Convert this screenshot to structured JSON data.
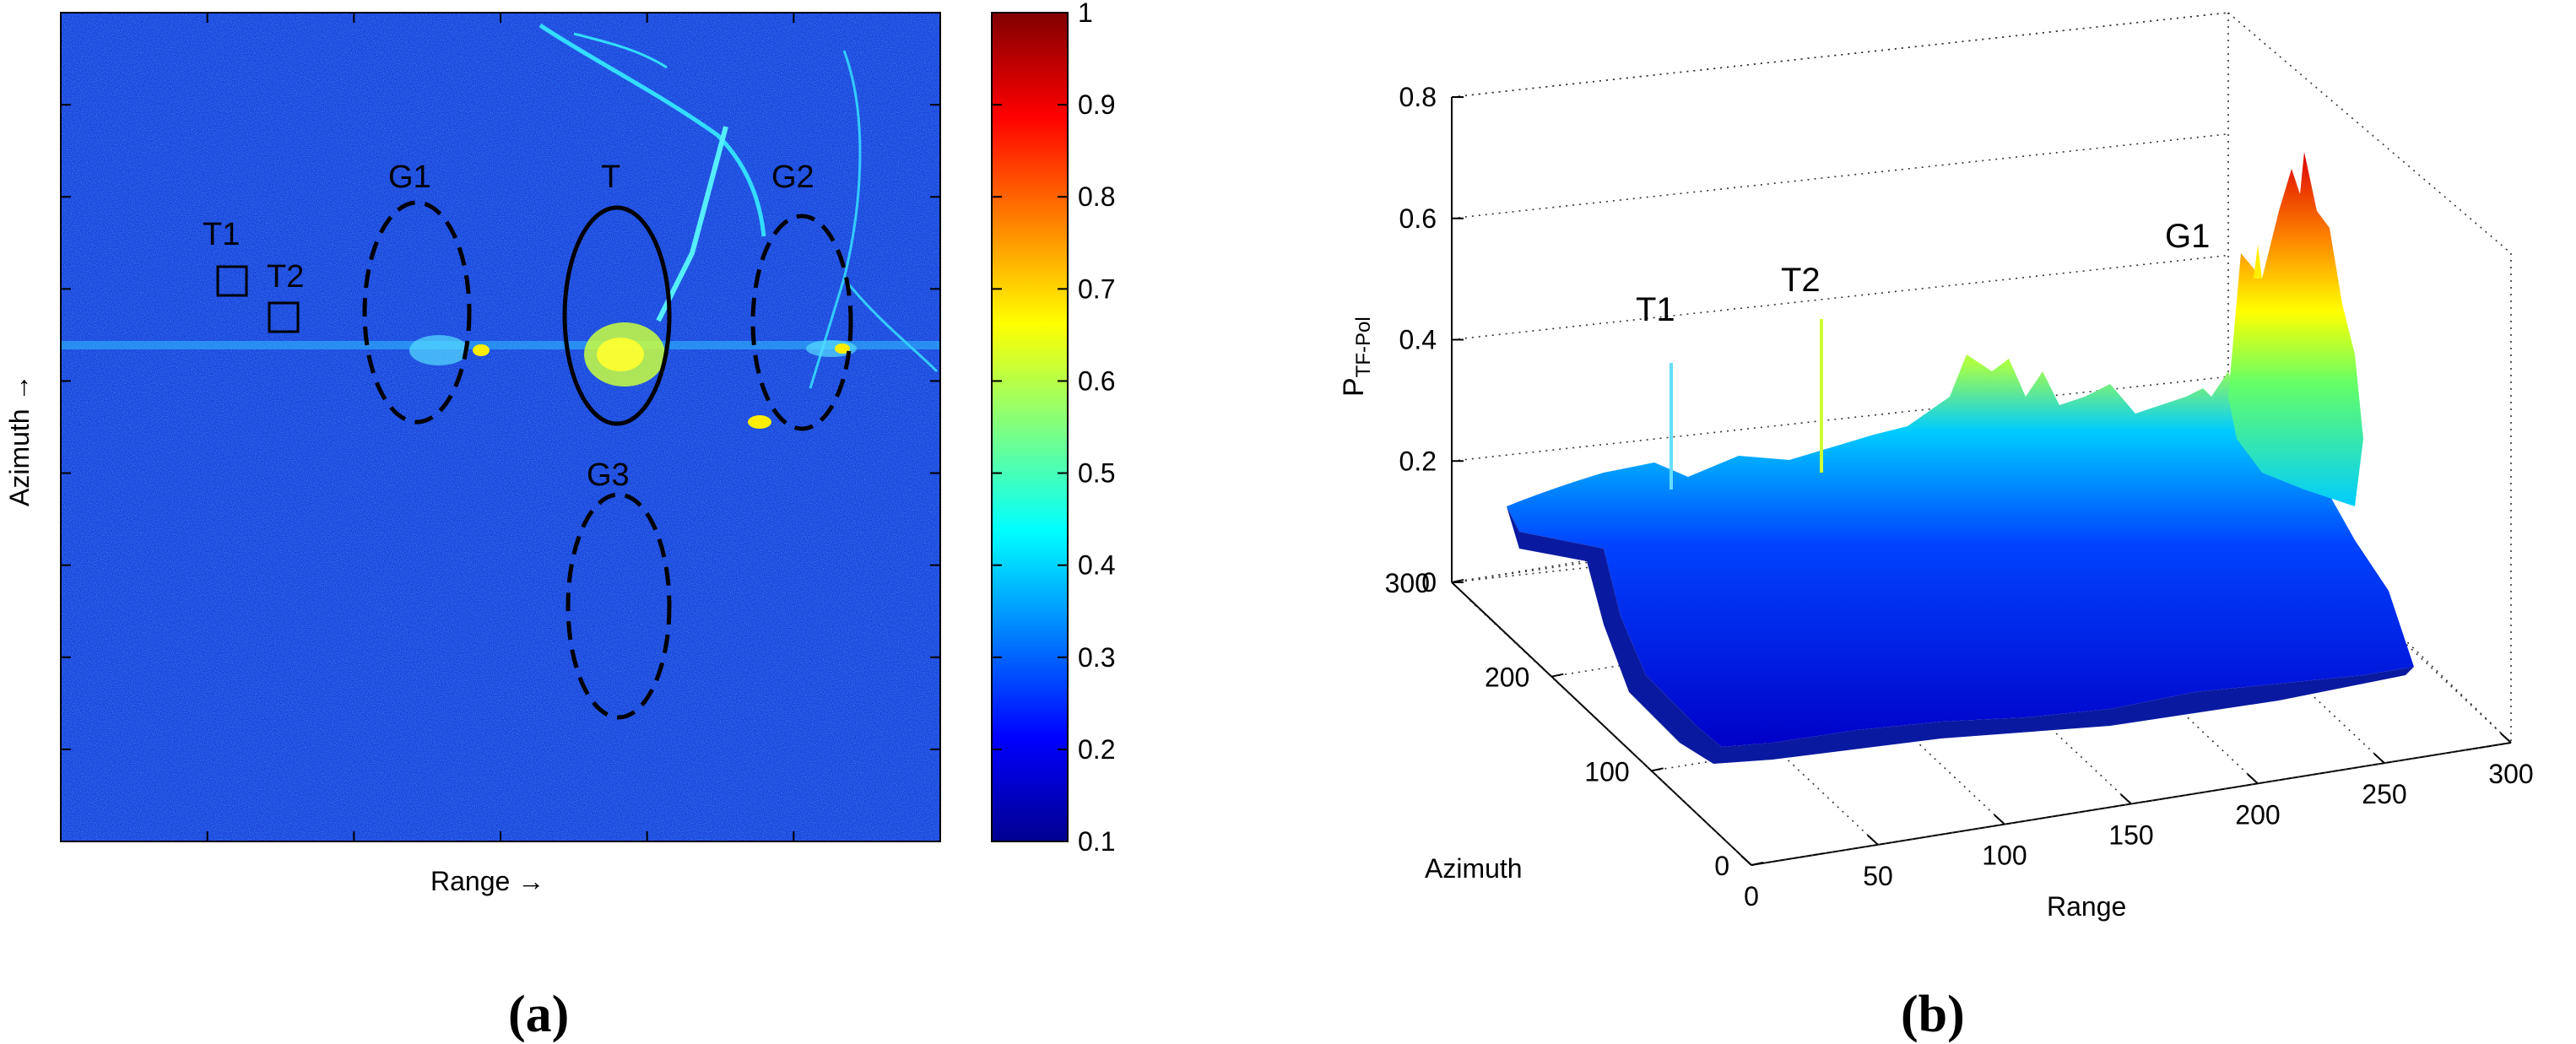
{
  "panel_a": {
    "caption": "a",
    "xlabel": "Range →",
    "ylabel": "Azimuth →",
    "colorbar_ticks": [
      "1",
      "0.9",
      "0.8",
      "0.7",
      "0.6",
      "0.5",
      "0.4",
      "0.3",
      "0.2",
      "0.1"
    ],
    "annotations": {
      "T1": "T1",
      "T2": "T2",
      "G1": "G1",
      "T": "T",
      "G2": "G2",
      "G3": "G3"
    }
  },
  "panel_b": {
    "caption": "b",
    "zlabel_main": "P",
    "zlabel_sub": "TF-Pol",
    "xlabel": "Range",
    "ylabel": "Azimuth",
    "z_ticks": [
      "0",
      "0.2",
      "0.4",
      "0.6",
      "0.8"
    ],
    "range_ticks": [
      "0",
      "50",
      "100",
      "150",
      "200",
      "250",
      "300"
    ],
    "azimuth_ticks": [
      "0",
      "100",
      "200",
      "300"
    ],
    "peak_labels": {
      "T1": "T1",
      "T2": "T2",
      "G1": "G1"
    }
  },
  "chart_data": [
    {
      "type": "heatmap",
      "title": "",
      "xlabel": "Range →",
      "ylabel": "Azimuth →",
      "colorbar": {
        "min": 0.1,
        "max": 1,
        "colormap": "jet"
      },
      "background_level": 0.2,
      "annotations": [
        {
          "label": "T1",
          "shape": "square"
        },
        {
          "label": "T2",
          "shape": "square"
        },
        {
          "label": "G1",
          "shape": "dashed-ellipse"
        },
        {
          "label": "T",
          "shape": "solid-ellipse"
        },
        {
          "label": "G2",
          "shape": "dashed-ellipse"
        },
        {
          "label": "G3",
          "shape": "dashed-ellipse"
        }
      ]
    },
    {
      "type": "surface3d",
      "title": "",
      "xlabel": "Range",
      "ylabel": "Azimuth",
      "zlabel": "P_TF-Pol",
      "xlim": [
        0,
        300
      ],
      "ylim": [
        0,
        300
      ],
      "zlim": [
        0,
        0.8
      ],
      "baseline_level": 0.18,
      "peaks": [
        {
          "label": "T1",
          "value": 0.37
        },
        {
          "label": "T2",
          "value": 0.42
        },
        {
          "label": "G1",
          "value": 0.72
        }
      ]
    }
  ]
}
